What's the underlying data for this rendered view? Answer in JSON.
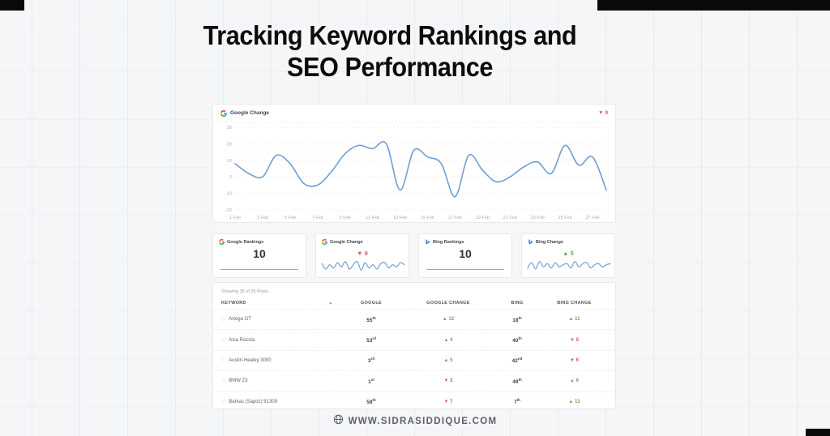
{
  "page": {
    "title_line1": "Tracking Keyword Rankings and",
    "title_line2": "SEO Performance",
    "footer_url": "WWW.SIDRASIDDIQUE.COM"
  },
  "colors": {
    "accent_blue": "#6f9ed6",
    "negative_red": "#cf5d5d",
    "positive_green": "#6fa75a",
    "bing_blue": "#3178c6"
  },
  "main_chart_card": {
    "title": "Google Change",
    "change_label": "▼ 9",
    "change_dir": "down"
  },
  "chart_data": {
    "type": "line",
    "title": "Google Change",
    "xlabel": "date",
    "ylabel": "ranking change",
    "ylim": [
      -20,
      30
    ],
    "grid": "dotted-horizontal",
    "legend": "none",
    "categories": [
      "1 Feb",
      "2 Feb",
      "3 Feb",
      "4 Feb",
      "5 Feb",
      "6 Feb",
      "7 Feb",
      "8 Feb",
      "9 Feb",
      "10 Feb",
      "11 Feb",
      "12 Feb",
      "13 Feb",
      "14 Feb",
      "15 Feb",
      "16 Feb",
      "17 Feb",
      "18 Feb",
      "19 Feb",
      "20 Feb",
      "21 Feb",
      "22 Feb",
      "23 Feb",
      "24 Feb",
      "25 Feb",
      "26 Feb",
      "27 Feb",
      "28 Feb"
    ],
    "values": [
      8,
      2,
      0,
      13,
      8,
      -4,
      -5,
      3,
      14,
      19,
      17,
      20,
      -8,
      16,
      12,
      8,
      -12,
      13,
      4,
      -3,
      0,
      6,
      9,
      2,
      19,
      7,
      12,
      -8
    ]
  },
  "charts": {
    "google_change_main": {
      "color": "#6f9ed6",
      "stroke": 1.6,
      "ylim": [
        -20,
        30
      ],
      "yticks": [
        30,
        20,
        10,
        0,
        -10,
        -20
      ],
      "xlabels": [
        "1 Feb",
        "3 Feb",
        "5 Feb",
        "7 Feb",
        "9 Feb",
        "11 Feb",
        "13 Feb",
        "15 Feb",
        "17 Feb",
        "19 Feb",
        "21 Feb",
        "23 Feb",
        "25 Feb",
        "27 Feb"
      ],
      "values": [
        8,
        2,
        0,
        13,
        8,
        -4,
        -5,
        3,
        14,
        19,
        17,
        20,
        -8,
        16,
        12,
        8,
        -12,
        13,
        4,
        -3,
        0,
        6,
        9,
        2,
        19,
        7,
        12,
        -8
      ]
    },
    "google_change_spark": {
      "color": "#7ba6d8",
      "stroke": 1.3,
      "ylim": [
        -6,
        6
      ],
      "values": [
        2,
        -3,
        1,
        -2,
        3,
        -1,
        4,
        -3,
        1,
        4,
        -4,
        3,
        -2,
        1,
        -3,
        2,
        3,
        -2,
        1,
        -1,
        3,
        1
      ]
    },
    "bing_change_spark": {
      "color": "#7ba6d8",
      "stroke": 1.3,
      "ylim": [
        -6,
        6
      ],
      "values": [
        -2,
        3,
        -3,
        4,
        -1,
        2,
        -2,
        3,
        -1,
        1,
        2,
        -2,
        4,
        -1,
        2,
        3,
        -2,
        1,
        2,
        -1,
        1,
        2
      ]
    }
  },
  "stat_cards": {
    "google_rankings": {
      "label": "Google Rankings",
      "value": "10",
      "icon": "google-icon"
    },
    "google_change": {
      "label": "Google Change",
      "value": "▼ 9",
      "dir": "down",
      "icon": "google-icon"
    },
    "bing_rankings": {
      "label": "Bing Rankings",
      "value": "10",
      "icon": "bing-icon"
    },
    "bing_change": {
      "label": "Bing Change",
      "value": "▲ 5",
      "dir": "up",
      "icon": "bing-icon"
    }
  },
  "table": {
    "summary": "Showing 35 of 35 Rows",
    "columns": {
      "keyword": "KEYWORD",
      "google": "GOOGLE",
      "google_change": "GOOGLE CHANGE",
      "bing": "BING",
      "bing_change": "BING CHANGE"
    },
    "sort_indicator": "▴",
    "star_glyph": "☆",
    "rows": [
      {
        "keyword": "Artega GT",
        "google": "55",
        "google_ord": "th",
        "google_change": "▲ 12",
        "google_change_dir": "up",
        "bing": "18",
        "bing_ord": "th",
        "bing_change": "▲ 11",
        "bing_change_dir": "up"
      },
      {
        "keyword": "Asia Rocsta",
        "google": "53",
        "google_ord": "rd",
        "google_change": "▲ 4",
        "google_change_dir": "up",
        "bing": "40",
        "bing_ord": "th",
        "bing_change": "▼ 5",
        "bing_change_dir": "down"
      },
      {
        "keyword": "Austin-Healey 3000",
        "google": "3",
        "google_ord": "rd",
        "google_change": "▲ 5",
        "google_change_dir": "up",
        "bing": "42",
        "bing_ord": "nd",
        "bing_change": "▼ 6",
        "bing_change_dir": "down"
      },
      {
        "keyword": "BMW Z3",
        "google": "1",
        "google_ord": "st",
        "google_change": "▼ 2",
        "google_change_dir": "down",
        "bing": "49",
        "bing_ord": "th",
        "bing_change": "▲ 6",
        "bing_change_dir": "up"
      },
      {
        "keyword": "Barkas (Sapoz) 91309",
        "google": "58",
        "google_ord": "th",
        "google_change": "▼ 7",
        "google_change_dir": "down",
        "bing": "7",
        "bing_ord": "th",
        "bing_change": "▲ 13",
        "bing_change_dir": "up"
      }
    ]
  }
}
